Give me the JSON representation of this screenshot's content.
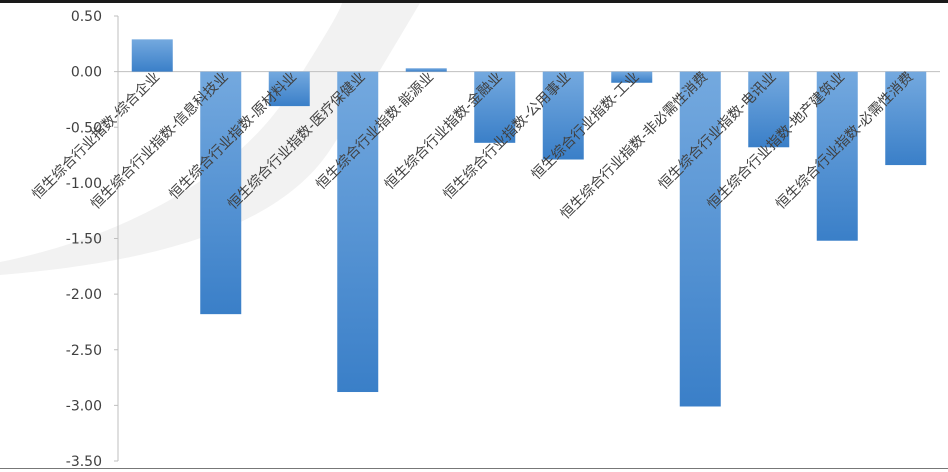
{
  "colors": {
    "bar_top": "#74a9df",
    "bar_bottom": "#3a7fc8",
    "axis": "#bfbfbf",
    "text": "#404040",
    "watermark": "#f2f2f2"
  },
  "chart_data": {
    "type": "bar",
    "title": "",
    "xlabel": "",
    "ylabel": "",
    "ylim": [
      -3.5,
      0.5
    ],
    "y_ticks": [
      "0.50",
      "0.00",
      "-0.50",
      "-1.00",
      "-1.50",
      "-2.00",
      "-2.50",
      "-3.00",
      "-3.50"
    ],
    "grid": false,
    "legend": "none",
    "categories": [
      "恒生综合行业指数-综合企业",
      "恒生综合行业指数-信息科技业",
      "恒生综合行业指数-原材料业",
      "恒生综合行业指数-医疗保健业",
      "恒生综合行业指数-能源业",
      "恒生综合行业指数-金融业",
      "恒生综合行业指数-公用事业",
      "恒生综合行业指数-工业",
      "恒生综合行业指数-非必需性消费",
      "恒生综合行业指数-电讯业",
      "恒生综合行业指数-地产建筑业",
      "恒生综合行业指数-必需性消费"
    ],
    "values": [
      0.29,
      -2.18,
      -0.31,
      -2.88,
      0.03,
      -0.64,
      -0.79,
      -0.1,
      -3.01,
      -0.68,
      -1.52,
      -0.84
    ]
  }
}
